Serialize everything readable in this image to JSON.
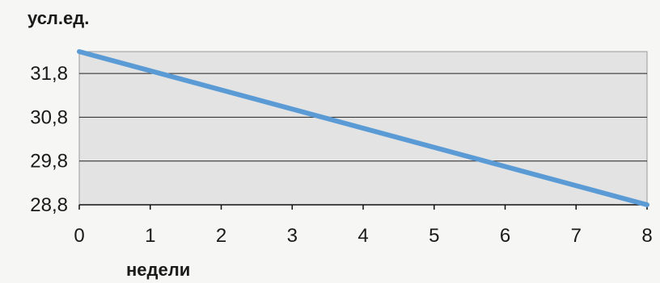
{
  "chart_data": {
    "type": "line",
    "ylabel": "усл.ед.",
    "xlabel": "недели",
    "xlim": [
      0,
      8
    ],
    "ylim": [
      28.8,
      32.3
    ],
    "x_ticks": [
      0,
      1,
      2,
      3,
      4,
      5,
      6,
      7,
      8
    ],
    "x_tick_labels": [
      "0",
      "1",
      "2",
      "3",
      "4",
      "5",
      "6",
      "7",
      "8"
    ],
    "y_ticks": [
      28.8,
      29.8,
      30.8,
      31.8
    ],
    "y_tick_labels": [
      "28,8",
      "29,8",
      "30,8",
      "31,8"
    ],
    "grid": "horizontal",
    "legend": "none",
    "series": [
      {
        "x": [
          0,
          8
        ],
        "y": [
          32.3,
          28.8
        ],
        "color": "#5b9bd5"
      }
    ],
    "colors": {
      "plot_background": "#e3e3e3",
      "gridline": "#222222",
      "line": "#5b9bd5"
    }
  }
}
